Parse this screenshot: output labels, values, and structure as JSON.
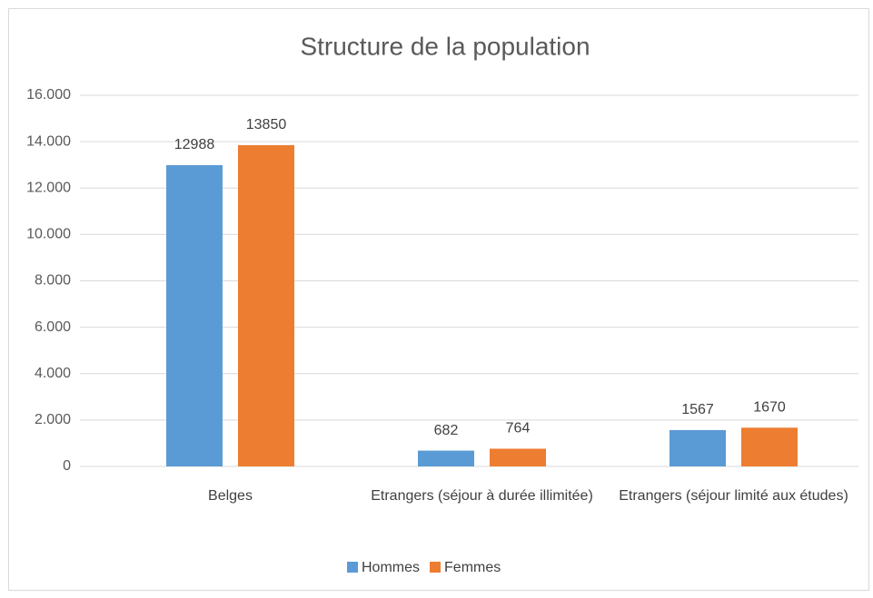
{
  "chart_data": {
    "type": "bar",
    "title": "Structure de la population",
    "categories": [
      "Belges",
      "Etrangers (séjour à durée illimitée)",
      "Etrangers (séjour limité aux études)"
    ],
    "series": [
      {
        "name": "Hommes",
        "color": "#5b9bd5",
        "values": [
          12988,
          682,
          1567
        ]
      },
      {
        "name": "Femmes",
        "color": "#ed7d31",
        "values": [
          13850,
          764,
          1670
        ]
      }
    ],
    "ylim": [
      0,
      16000
    ],
    "yticks": [
      0,
      {
        "value": 2000,
        "label": "2.000"
      },
      {
        "value": 4000,
        "label": "4.000"
      },
      {
        "value": 6000,
        "label": "6.000"
      },
      {
        "value": 8000,
        "label": "8.000"
      },
      {
        "value": 10000,
        "label": "10.000"
      },
      {
        "value": 12000,
        "label": "12.000"
      },
      {
        "value": 14000,
        "label": "14.000"
      },
      {
        "value": 16000,
        "label": "16.000"
      }
    ],
    "grid": true,
    "legend": "bottom"
  }
}
